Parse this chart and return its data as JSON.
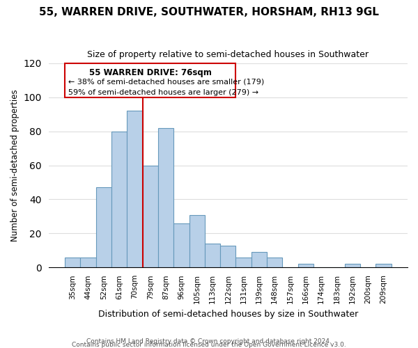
{
  "title": "55, WARREN DRIVE, SOUTHWATER, HORSHAM, RH13 9GL",
  "subtitle": "Size of property relative to semi-detached houses in Southwater",
  "xlabel": "Distribution of semi-detached houses by size in Southwater",
  "ylabel": "Number of semi-detached properties",
  "bar_labels": [
    "35sqm",
    "44sqm",
    "52sqm",
    "61sqm",
    "70sqm",
    "79sqm",
    "87sqm",
    "96sqm",
    "105sqm",
    "113sqm",
    "122sqm",
    "131sqm",
    "139sqm",
    "148sqm",
    "157sqm",
    "166sqm",
    "174sqm",
    "183sqm",
    "192sqm",
    "200sqm",
    "209sqm"
  ],
  "bar_values": [
    6,
    6,
    47,
    80,
    92,
    60,
    82,
    26,
    31,
    14,
    13,
    6,
    9,
    6,
    0,
    2,
    0,
    0,
    2,
    0,
    2
  ],
  "bar_color": "#b8d0e8",
  "bar_edge_color": "#6699bb",
  "vline_index": 4.5,
  "vline_color": "#cc0000",
  "ylim": [
    0,
    120
  ],
  "yticks": [
    0,
    20,
    40,
    60,
    80,
    100,
    120
  ],
  "annotation_title": "55 WARREN DRIVE: 76sqm",
  "annotation_line1": "← 38% of semi-detached houses are smaller (179)",
  "annotation_line2": "59% of semi-detached houses are larger (279) →",
  "footer_line1": "Contains HM Land Registry data © Crown copyright and database right 2024.",
  "footer_line2": "Contains public sector information licensed under the Open Government Licence v3.0.",
  "background_color": "#ffffff",
  "grid_color": "#dddddd"
}
